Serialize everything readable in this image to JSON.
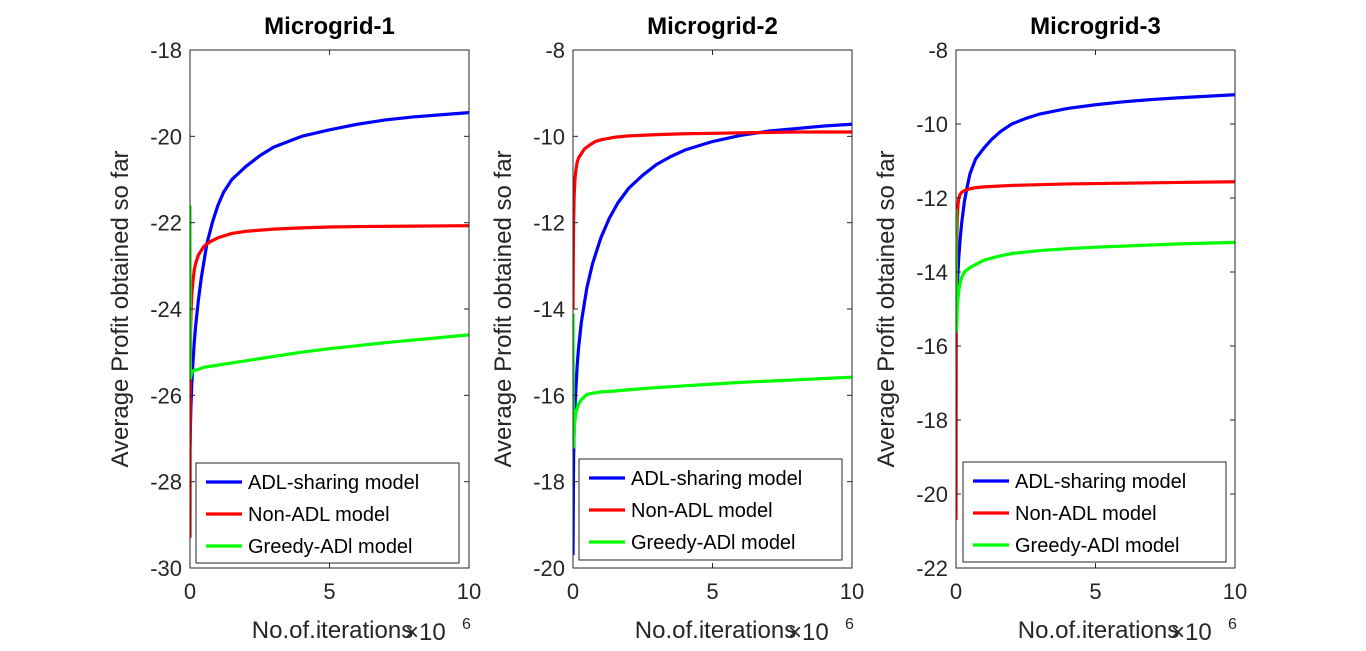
{
  "figure": {
    "colors": {
      "ADL-sharing model": "#0000ff",
      "Non-ADL model": "#ff0000",
      "Greedy-ADl model": "#00ff00"
    }
  },
  "chart_data": [
    {
      "type": "line",
      "title": "Microgrid-1",
      "xlabel": "No.of.iterations",
      "x_exponent_label": "×10",
      "x_exponent": "6",
      "ylabel": "Average Profit obtained so far",
      "xlim": [
        0,
        10
      ],
      "ylim": [
        -30,
        -18
      ],
      "xticks": [
        0,
        5,
        10
      ],
      "yticks": [
        -30,
        -28,
        -26,
        -24,
        -22,
        -20,
        -18
      ],
      "grid": false,
      "legend_position": "bottom-right",
      "series": [
        {
          "name": "ADL-sharing model",
          "color": "#0000ff",
          "x": [
            0,
            0.03,
            0.06,
            0.1,
            0.15,
            0.2,
            0.3,
            0.4,
            0.5,
            0.6,
            0.8,
            1,
            1.2,
            1.5,
            2,
            2.5,
            3,
            4,
            5,
            6,
            7,
            8,
            9,
            10
          ],
          "y": [
            -27.2,
            -26.3,
            -25.8,
            -25.3,
            -24.8,
            -24.4,
            -23.8,
            -23.3,
            -22.9,
            -22.5,
            -22.0,
            -21.6,
            -21.3,
            -21.0,
            -20.7,
            -20.45,
            -20.25,
            -20.0,
            -19.85,
            -19.72,
            -19.62,
            -19.55,
            -19.5,
            -19.45
          ]
        },
        {
          "name": "Non-ADL model",
          "color": "#ff0000",
          "x": [
            0,
            0.005,
            0.01,
            0.02,
            0.04,
            0.07,
            0.1,
            0.15,
            0.2,
            0.3,
            0.5,
            0.7,
            1,
            1.5,
            2,
            3,
            4,
            5,
            6,
            8,
            10
          ],
          "y": [
            -29.3,
            -27,
            -25.6,
            -24.5,
            -24.0,
            -23.6,
            -23.4,
            -23.1,
            -22.95,
            -22.75,
            -22.55,
            -22.45,
            -22.35,
            -22.25,
            -22.2,
            -22.15,
            -22.12,
            -22.1,
            -22.09,
            -22.08,
            -22.07
          ]
        },
        {
          "name": "Greedy-ADl model",
          "color": "#00ff00",
          "x": [
            0,
            0.005,
            0.01,
            0.02,
            0.05,
            0.1,
            0.15,
            0.3,
            0.5,
            1,
            1.5,
            2,
            3,
            4,
            5,
            6,
            7,
            8,
            9,
            10
          ],
          "y": [
            -21.6,
            -23.5,
            -25.2,
            -25.6,
            -25.5,
            -25.45,
            -25.42,
            -25.4,
            -25.35,
            -25.3,
            -25.25,
            -25.2,
            -25.1,
            -25.0,
            -24.92,
            -24.85,
            -24.78,
            -24.72,
            -24.66,
            -24.6
          ]
        }
      ]
    },
    {
      "type": "line",
      "title": "Microgrid-2",
      "xlabel": "No.of.iterations",
      "x_exponent_label": "×10",
      "x_exponent": "6",
      "ylabel": "Average Profit obtained so far",
      "xlim": [
        0,
        10
      ],
      "ylim": [
        -20,
        -8
      ],
      "xticks": [
        0,
        5,
        10
      ],
      "yticks": [
        -20,
        -18,
        -16,
        -14,
        -12,
        -10,
        -8
      ],
      "grid": false,
      "legend_position": "bottom-right",
      "series": [
        {
          "name": "ADL-sharing model",
          "color": "#0000ff",
          "x": [
            0,
            0.02,
            0.05,
            0.1,
            0.15,
            0.2,
            0.3,
            0.4,
            0.5,
            0.7,
            1,
            1.3,
            1.6,
            2,
            2.5,
            3,
            3.5,
            4,
            5,
            6,
            7,
            8,
            9,
            10
          ],
          "y": [
            -19.7,
            -17.5,
            -16.5,
            -15.9,
            -15.3,
            -14.9,
            -14.3,
            -13.9,
            -13.5,
            -12.95,
            -12.35,
            -11.9,
            -11.55,
            -11.2,
            -10.9,
            -10.65,
            -10.47,
            -10.32,
            -10.12,
            -9.98,
            -9.88,
            -9.82,
            -9.76,
            -9.72
          ]
        },
        {
          "name": "Non-ADL model",
          "color": "#ff0000",
          "x": [
            0,
            0.01,
            0.02,
            0.04,
            0.07,
            0.1,
            0.15,
            0.2,
            0.3,
            0.4,
            0.6,
            0.8,
            1,
            1.5,
            2,
            3,
            4,
            5,
            6,
            8,
            10
          ],
          "y": [
            -14,
            -12.8,
            -12.0,
            -11.4,
            -11.0,
            -10.8,
            -10.6,
            -10.5,
            -10.4,
            -10.3,
            -10.2,
            -10.12,
            -10.08,
            -10.02,
            -9.99,
            -9.96,
            -9.94,
            -9.93,
            -9.92,
            -9.9,
            -9.9
          ]
        },
        {
          "name": "Greedy-ADl model",
          "color": "#00ff00",
          "x": [
            0,
            0.005,
            0.01,
            0.02,
            0.05,
            0.1,
            0.2,
            0.3,
            0.5,
            0.7,
            1,
            1.5,
            2,
            3,
            4,
            5,
            6,
            7,
            8,
            9,
            10
          ],
          "y": [
            -14.1,
            -15.5,
            -16.8,
            -17.2,
            -16.7,
            -16.4,
            -16.2,
            -16.1,
            -15.98,
            -15.95,
            -15.92,
            -15.9,
            -15.87,
            -15.82,
            -15.78,
            -15.74,
            -15.7,
            -15.67,
            -15.64,
            -15.61,
            -15.58
          ]
        }
      ]
    },
    {
      "type": "line",
      "title": "Microgrid-3",
      "xlabel": "No.of.iterations",
      "x_exponent_label": "×10",
      "x_exponent": "6",
      "ylabel": "Average Profit obtained so far",
      "xlim": [
        0,
        10
      ],
      "ylim": [
        -22,
        -8
      ],
      "xticks": [
        0,
        5,
        10
      ],
      "yticks": [
        -22,
        -20,
        -18,
        -16,
        -14,
        -12,
        -10,
        -8
      ],
      "grid": false,
      "legend_position": "bottom-right",
      "series": [
        {
          "name": "ADL-sharing model",
          "color": "#0000ff",
          "x": [
            0,
            0.02,
            0.05,
            0.1,
            0.15,
            0.2,
            0.3,
            0.4,
            0.5,
            0.7,
            1,
            1.3,
            1.6,
            2,
            2.5,
            3,
            4,
            5,
            6,
            7,
            8,
            9,
            10
          ],
          "y": [
            -15.6,
            -14.8,
            -14.3,
            -13.6,
            -13.1,
            -12.7,
            -12.1,
            -11.7,
            -11.35,
            -10.95,
            -10.65,
            -10.4,
            -10.2,
            -10.0,
            -9.85,
            -9.73,
            -9.58,
            -9.48,
            -9.4,
            -9.34,
            -9.29,
            -9.25,
            -9.21
          ]
        },
        {
          "name": "Non-ADL model",
          "color": "#ff0000",
          "x": [
            0,
            0.005,
            0.01,
            0.02,
            0.04,
            0.07,
            0.1,
            0.15,
            0.2,
            0.3,
            0.5,
            0.7,
            1,
            1.5,
            2,
            3,
            4,
            5,
            6,
            8,
            10
          ],
          "y": [
            -20.7,
            -17.5,
            -15.0,
            -13.5,
            -12.6,
            -12.2,
            -12.0,
            -11.9,
            -11.85,
            -11.8,
            -11.75,
            -11.72,
            -11.7,
            -11.68,
            -11.66,
            -11.64,
            -11.62,
            -11.61,
            -11.6,
            -11.58,
            -11.56
          ]
        },
        {
          "name": "Greedy-ADl model",
          "color": "#00ff00",
          "x": [
            0,
            0.005,
            0.01,
            0.02,
            0.05,
            0.1,
            0.15,
            0.2,
            0.3,
            0.5,
            0.7,
            1,
            1.5,
            2,
            3,
            4,
            5,
            6,
            7,
            8,
            9,
            10
          ],
          "y": [
            -12.3,
            -13.8,
            -15.3,
            -15.6,
            -14.9,
            -14.5,
            -14.3,
            -14.15,
            -14.0,
            -13.88,
            -13.8,
            -13.68,
            -13.58,
            -13.5,
            -13.42,
            -13.37,
            -13.33,
            -13.3,
            -13.27,
            -13.24,
            -13.22,
            -13.2
          ]
        }
      ]
    }
  ]
}
